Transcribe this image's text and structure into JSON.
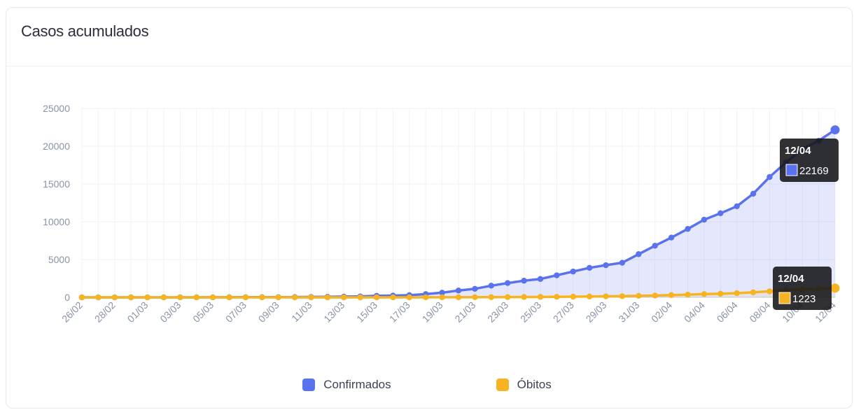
{
  "card": {
    "title": "Casos acumulados"
  },
  "legend": {
    "items": [
      {
        "label": "Confirmados",
        "color": "#5b72ee"
      },
      {
        "label": "Óbitos",
        "color": "#f7b422"
      }
    ]
  },
  "tooltips": [
    {
      "date": "12/04",
      "value": "22169",
      "series": "Confirmados"
    },
    {
      "date": "12/04",
      "value": "1223",
      "series": "Óbitos"
    }
  ],
  "chart_data": {
    "type": "area",
    "title": "Casos acumulados",
    "xlabel": "",
    "ylabel": "",
    "ylim": [
      0,
      25000
    ],
    "yticks": [
      0,
      5000,
      10000,
      15000,
      20000,
      25000
    ],
    "grid": true,
    "legend_position": "bottom",
    "x": [
      "26/02",
      "27/02",
      "28/02",
      "29/02",
      "01/03",
      "02/03",
      "03/03",
      "04/03",
      "05/03",
      "06/03",
      "07/03",
      "08/03",
      "09/03",
      "10/03",
      "11/03",
      "12/03",
      "13/03",
      "14/03",
      "15/03",
      "16/03",
      "17/03",
      "18/03",
      "19/03",
      "20/03",
      "21/03",
      "22/03",
      "23/03",
      "24/03",
      "25/03",
      "26/03",
      "27/03",
      "28/03",
      "29/03",
      "30/03",
      "31/03",
      "01/04",
      "02/04",
      "03/04",
      "04/04",
      "05/04",
      "06/04",
      "07/04",
      "08/04",
      "09/04",
      "10/04",
      "11/04",
      "12/04"
    ],
    "x_tick_labels": [
      "26/02",
      "28/02",
      "01/03",
      "03/03",
      "05/03",
      "07/03",
      "09/03",
      "11/03",
      "13/03",
      "15/03",
      "17/03",
      "19/03",
      "21/03",
      "23/03",
      "25/03",
      "27/03",
      "29/03",
      "31/03",
      "02/04",
      "04/04",
      "06/04",
      "08/04",
      "10/04",
      "12/04"
    ],
    "series": [
      {
        "name": "Confirmados",
        "color": "#5b72ee",
        "values": [
          1,
          1,
          2,
          2,
          2,
          2,
          3,
          4,
          8,
          13,
          19,
          25,
          25,
          34,
          52,
          77,
          98,
          121,
          200,
          234,
          291,
          428,
          621,
          904,
          1128,
          1546,
          1891,
          2201,
          2433,
          2915,
          3417,
          3904,
          4256,
          4579,
          5717,
          6836,
          7910,
          9056,
          10278,
          11130,
          12056,
          13717,
          15927,
          17857,
          19638,
          20727,
          22169
        ]
      },
      {
        "name": "Óbitos",
        "color": "#f7b422",
        "values": [
          0,
          0,
          0,
          0,
          0,
          0,
          0,
          0,
          0,
          0,
          0,
          0,
          0,
          0,
          0,
          0,
          0,
          0,
          0,
          0,
          1,
          3,
          6,
          11,
          18,
          25,
          34,
          46,
          57,
          77,
          92,
          111,
          136,
          159,
          201,
          240,
          299,
          359,
          432,
          486,
          553,
          667,
          800,
          941,
          1056,
          1124,
          1223
        ]
      }
    ]
  }
}
